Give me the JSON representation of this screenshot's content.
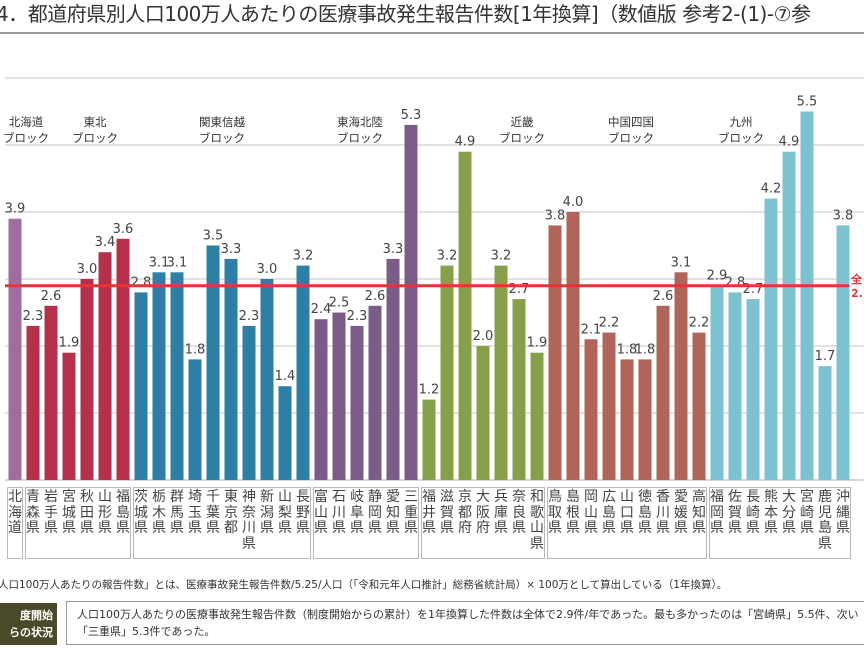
{
  "title": "4．都道府県別人口100万人あたりの医療事故発生報告件数[1年換算]（数値版 参考2-(1)-⑦参",
  "chart_data": {
    "type": "bar",
    "title": "",
    "xlabel": "",
    "ylabel": "",
    "ylim": [
      0,
      6
    ],
    "grid": true,
    "average_line": {
      "value": 2.9,
      "label": "全 2.",
      "color": "#e8323a"
    },
    "blocks": [
      {
        "name": "北海道ブロック",
        "line1": "北海道",
        "line2": "ブロック",
        "color": "#9e6f9e",
        "prefectures": [
          "北海道"
        ],
        "values": [
          3.9
        ]
      },
      {
        "name": "東北ブロック",
        "line1": "東北",
        "line2": "ブロック",
        "color": "#b5304a",
        "prefectures": [
          "青森県",
          "岩手県",
          "宮城県",
          "秋田県",
          "山形県",
          "福島県"
        ],
        "values": [
          2.3,
          2.6,
          1.9,
          3.0,
          3.4,
          3.6
        ]
      },
      {
        "name": "関東信越ブロック",
        "line1": "関東信越",
        "line2": "ブロック",
        "color": "#2e7fa6",
        "prefectures": [
          "茨城県",
          "栃木県",
          "群馬県",
          "埼玉県",
          "千葉県",
          "東京都",
          "神奈川県",
          "新潟県",
          "山梨県",
          "長野県"
        ],
        "values": [
          2.8,
          3.1,
          3.1,
          1.8,
          3.5,
          3.3,
          2.3,
          3.0,
          1.4,
          3.2
        ]
      },
      {
        "name": "東海北陸ブロック",
        "line1": "東海北陸",
        "line2": "ブロック",
        "color": "#7b5c88",
        "prefectures": [
          "富山県",
          "石川県",
          "岐阜県",
          "静岡県",
          "愛知県",
          "三重県"
        ],
        "values": [
          2.4,
          2.5,
          2.3,
          2.6,
          3.3,
          5.3
        ]
      },
      {
        "name": "近畿ブロック",
        "line1": "近畿",
        "line2": "ブロック",
        "color": "#86a04a",
        "prefectures": [
          "福井県",
          "滋賀県",
          "京都府",
          "大阪府",
          "兵庫県",
          "奈良県",
          "和歌山県"
        ],
        "values": [
          1.2,
          3.2,
          4.9,
          2.0,
          3.2,
          2.7,
          1.9
        ]
      },
      {
        "name": "中国四国ブロック",
        "line1": "中国四国",
        "line2": "ブロック",
        "color": "#b0645a",
        "prefectures": [
          "鳥取県",
          "島根県",
          "岡山県",
          "広島県",
          "山口県",
          "徳島県",
          "香川県",
          "愛媛県",
          "高知県"
        ],
        "values": [
          3.8,
          4.0,
          2.1,
          2.2,
          1.8,
          1.8,
          2.6,
          3.1,
          2.2
        ]
      },
      {
        "name": "九州ブロック",
        "line1": "九州",
        "line2": "ブロック",
        "color": "#7cc3cf",
        "prefectures": [
          "福岡県",
          "佐賀県",
          "長崎県",
          "熊本県",
          "大分県",
          "宮崎県",
          "鹿児島県",
          "沖縄県"
        ],
        "values": [
          2.9,
          2.8,
          2.7,
          4.2,
          4.9,
          5.5,
          1.7,
          3.8
        ]
      }
    ]
  },
  "footnote": "人口100万人あたりの報告件数」とは、医療事故発生報告件数/5.25/人口（「令和元年人口推計」総務省統計局）× 100万として算出している（1年換算）。",
  "summary": {
    "tag_line1": "度開始",
    "tag_line2": "らの状況",
    "line1": "人口100万人あたりの医療事故発生報告件数（制度開始からの累計）を1年換算した件数は全体で2.9件/年であった。最も多かったのは「宮崎県」5.5件、次い",
    "line2": "「三重県」5.3件であった。"
  }
}
